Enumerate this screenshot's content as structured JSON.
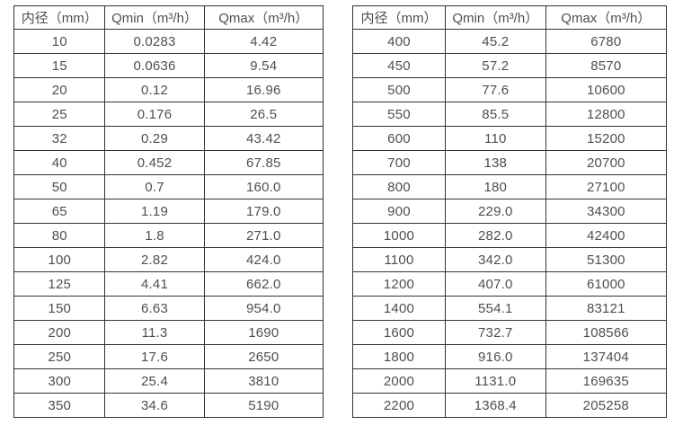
{
  "colors": {
    "background": "#ffffff",
    "border": "#333333",
    "text": "#4f4f4f"
  },
  "chart_data": [
    {
      "type": "table",
      "title": "",
      "columns": [
        "内径（mm）",
        "Qmin（m³/h）",
        "Qmax（m³/h）"
      ],
      "rows": [
        [
          "10",
          "0.0283",
          "4.42"
        ],
        [
          "15",
          "0.0636",
          "9.54"
        ],
        [
          "20",
          "0.12",
          "16.96"
        ],
        [
          "25",
          "0.176",
          "26.5"
        ],
        [
          "32",
          "0.29",
          "43.42"
        ],
        [
          "40",
          "0.452",
          "67.85"
        ],
        [
          "50",
          "0.7",
          "160.0"
        ],
        [
          "65",
          "1.19",
          "179.0"
        ],
        [
          "80",
          "1.8",
          "271.0"
        ],
        [
          "100",
          "2.82",
          "424.0"
        ],
        [
          "125",
          "4.41",
          "662.0"
        ],
        [
          "150",
          "6.63",
          "954.0"
        ],
        [
          "200",
          "11.3",
          "1690"
        ],
        [
          "250",
          "17.6",
          "2650"
        ],
        [
          "300",
          "25.4",
          "3810"
        ],
        [
          "350",
          "34.6",
          "5190"
        ]
      ]
    },
    {
      "type": "table",
      "title": "",
      "columns": [
        "内径（mm）",
        "Qmin（m³/h）",
        "Qmax（m³/h）"
      ],
      "rows": [
        [
          "400",
          "45.2",
          "6780"
        ],
        [
          "450",
          "57.2",
          "8570"
        ],
        [
          "500",
          "77.6",
          "10600"
        ],
        [
          "550",
          "85.5",
          "12800"
        ],
        [
          "600",
          "110",
          "15200"
        ],
        [
          "700",
          "138",
          "20700"
        ],
        [
          "800",
          "180",
          "27100"
        ],
        [
          "900",
          "229.0",
          "34300"
        ],
        [
          "1000",
          "282.0",
          "42400"
        ],
        [
          "1100",
          "342.0",
          "51300"
        ],
        [
          "1200",
          "407.0",
          "61000"
        ],
        [
          "1400",
          "554.1",
          "83121"
        ],
        [
          "1600",
          "732.7",
          "108566"
        ],
        [
          "1800",
          "916.0",
          "137404"
        ],
        [
          "2000",
          "1131.0",
          "169635"
        ],
        [
          "2200",
          "1368.4",
          "205258"
        ]
      ]
    }
  ]
}
